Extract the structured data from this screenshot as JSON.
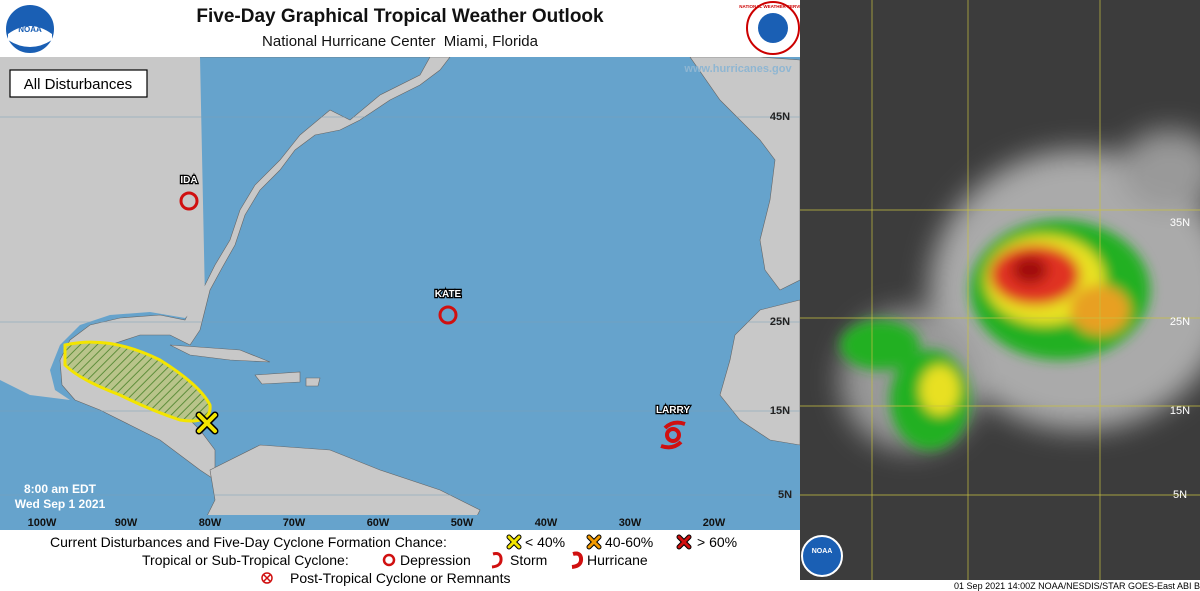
{
  "header": {
    "title": "Five-Day Graphical Tropical Weather Outlook",
    "subtitle": "National Hurricane Center  Miami, Florida",
    "logo_left": "NOAA",
    "logo_right": "NATIONAL WEATHER SERVICE"
  },
  "map": {
    "panel_label": "All Disturbances",
    "website": "www.hurricanes.gov",
    "latitudes": [
      "45N",
      "25N",
      "15N",
      "5N"
    ],
    "longitudes": [
      "100W",
      "90W",
      "80W",
      "70W",
      "60W",
      "50W",
      "40W",
      "30W",
      "20W"
    ],
    "systems": [
      "IDA",
      "KATE",
      "LARRY"
    ],
    "time": "8:00 am EDT",
    "date": "Wed Sep 1 2021"
  },
  "legend": {
    "formation_heading": "Current Disturbances and Five-Day Cyclone Formation Chance:",
    "low": "< 40%",
    "medium": "40-60%",
    "high": "> 60%",
    "cyclone_heading": "Tropical or Sub-Tropical Cyclone:",
    "depression": "Depression",
    "storm": "Storm",
    "hurricane": "Hurricane",
    "post_tropical": "Post-Tropical Cyclone or Remnants"
  },
  "satellite": {
    "latitudes": [
      "35N",
      "25N",
      "15N",
      "5N"
    ],
    "logo": "NOAA",
    "caption": "01 Sep 2021 14:00Z NOAA/NESDIS/STAR GOES-East ABI B"
  }
}
